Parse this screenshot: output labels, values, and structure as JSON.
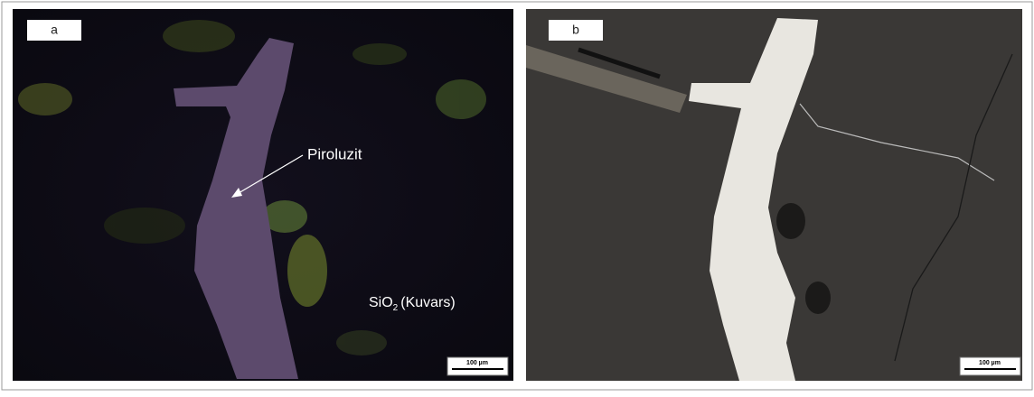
{
  "panels": [
    {
      "label": "a",
      "annotations": {
        "mineral": "Piroluzit",
        "quartz": [
          "SiO",
          "2",
          "(Kuvars)"
        ]
      },
      "scale_bar": "100 µm"
    },
    {
      "label": "b",
      "scale_bar": "100 µm"
    }
  ]
}
